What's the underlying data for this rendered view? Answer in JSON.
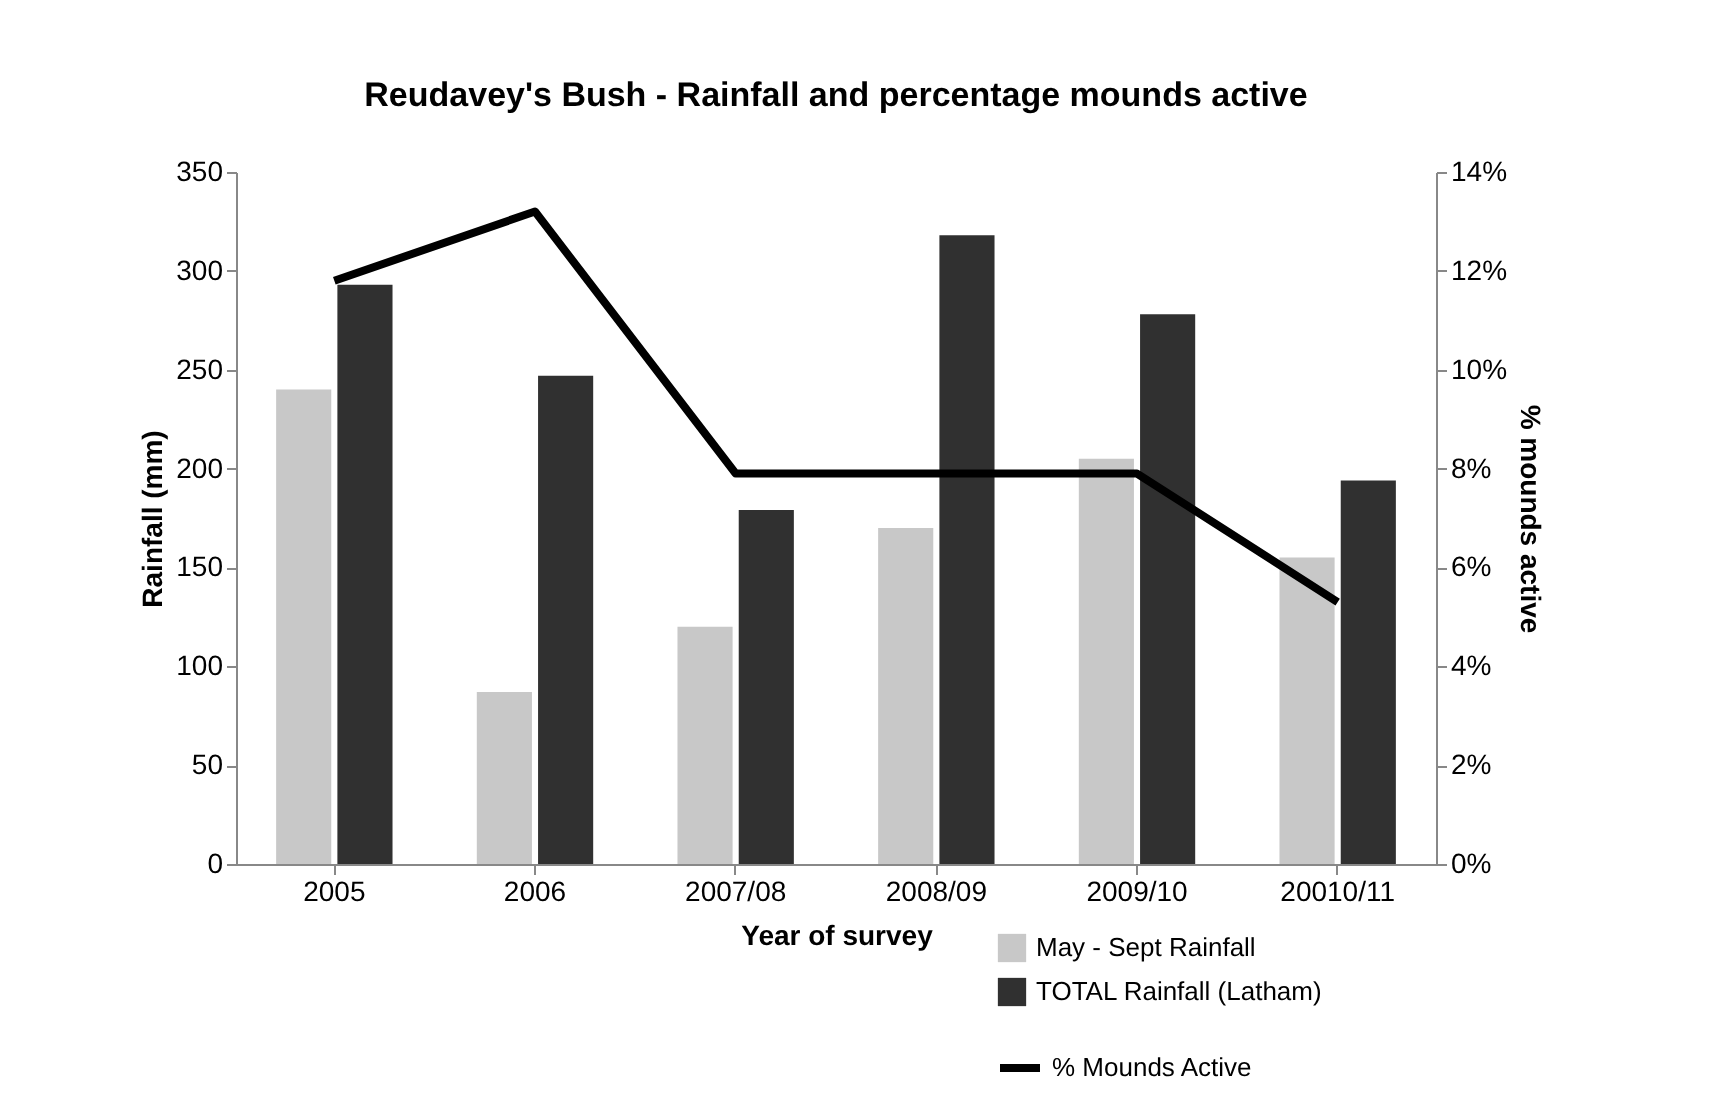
{
  "chart_data": {
    "type": "bar",
    "title": "Reudavey's Bush - Rainfall and percentage mounds active",
    "xlabel": "Year of survey",
    "ylabel": "Rainfall (mm)",
    "y2label": "% mounds active",
    "categories": [
      "2005",
      "2006",
      "2007/08",
      "2008/09",
      "2009/10",
      "20010/11"
    ],
    "series": [
      {
        "name": "May - Sept Rainfall",
        "color": "#c8c8c8",
        "values": [
          240,
          87,
          120,
          170,
          205,
          155
        ]
      },
      {
        "name": "TOTAL Rainfall (Latham)",
        "color": "#303030",
        "values": [
          293,
          247,
          179,
          318,
          278,
          194
        ]
      },
      {
        "name": "% Mounds Active",
        "type": "line",
        "axis": "y2",
        "color": "#000000",
        "values": [
          11.8,
          13.2,
          7.9,
          7.9,
          7.9,
          5.3
        ]
      }
    ],
    "ylim": [
      0,
      350
    ],
    "yticks": [
      0,
      50,
      100,
      150,
      200,
      250,
      300,
      350
    ],
    "y2lim": [
      0,
      14
    ],
    "y2ticks": [
      {
        "value": 0,
        "label": "0%"
      },
      {
        "value": 2,
        "label": "2%"
      },
      {
        "value": 4,
        "label": "4%"
      },
      {
        "value": 6,
        "label": "6%"
      },
      {
        "value": 8,
        "label": "8%"
      },
      {
        "value": 10,
        "label": "10%"
      },
      {
        "value": 12,
        "label": "12%"
      },
      {
        "value": 14,
        "label": "14%"
      }
    ],
    "grid": false,
    "legend": "bottom right",
    "marker": "none"
  }
}
